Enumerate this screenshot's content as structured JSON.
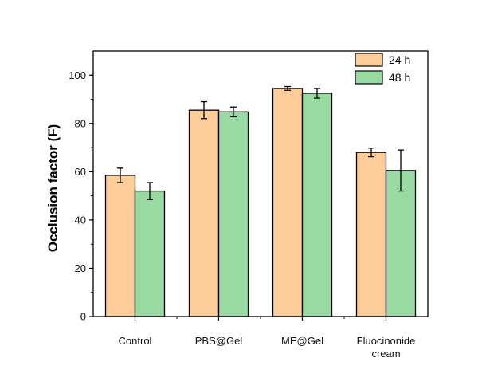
{
  "chart_data": {
    "type": "bar",
    "categories": [
      [
        "Control"
      ],
      [
        "PBS@Gel"
      ],
      [
        "ME@Gel"
      ],
      [
        "Fluocinonide",
        "cream"
      ]
    ],
    "series": [
      {
        "name": "24 h",
        "color": "#FDCC99",
        "values": [
          58.5,
          85.5,
          94.5,
          68.0
        ],
        "errors": [
          3.0,
          3.5,
          0.8,
          1.8
        ]
      },
      {
        "name": "48 h",
        "color": "#99D9A2",
        "values": [
          52.0,
          84.8,
          92.5,
          60.5
        ],
        "errors": [
          3.5,
          2.0,
          2.0,
          8.5
        ]
      }
    ],
    "ylabel": "Occlusion factor (F)",
    "xlabel": "",
    "ylim": [
      0,
      110
    ],
    "yticks": [
      0,
      20,
      40,
      60,
      80,
      100
    ],
    "legend_position": "top-right",
    "grid": false
  }
}
